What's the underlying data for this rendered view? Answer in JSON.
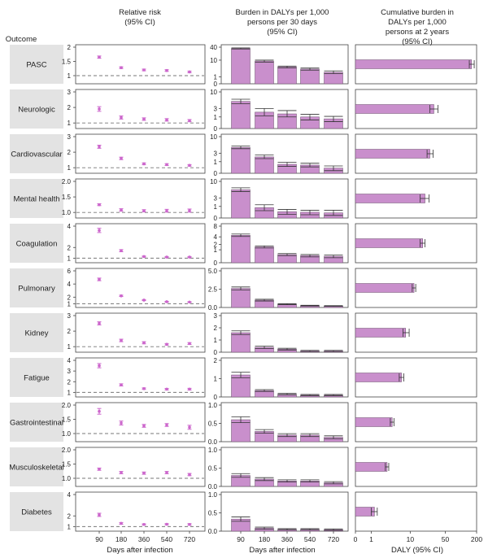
{
  "headers": {
    "outcome": "Outcome",
    "relative_risk": [
      "Relative risk",
      "(95% CI)"
    ],
    "burden": [
      "Burden in DALYs per 1,000",
      "persons per 30 days",
      "(95% CI)"
    ],
    "cumulative": [
      "Cumulative burden in",
      "DALYs per 1,000",
      "persons at 2 years",
      "(95% CI)"
    ]
  },
  "footer": {
    "xlabel_rr": "Days after infection",
    "xlabel_burden": "Days after infection",
    "xlabel_cum": "DALY (95% CI)"
  },
  "colors": {
    "bar": "#c98fcc",
    "bar_edge": "#6a4f6b",
    "point": "#cc66cc",
    "row_label_bg": "#e3e3e3",
    "dashed_line": "#777777"
  },
  "chart_data": {
    "type": "bar",
    "days": [
      "90",
      "180",
      "360",
      "540",
      "720"
    ],
    "cumulative_axis": {
      "scale": "log",
      "lim": [
        0,
        200
      ],
      "tick_values": [
        0,
        1,
        10,
        50,
        200
      ],
      "tick_labels": [
        "0",
        "1",
        "10",
        "50",
        "200"
      ]
    },
    "outcomes": [
      {
        "name": "PASC",
        "rr": {
          "ylim": [
            0.8,
            2.0
          ],
          "ticks": [
            "1",
            "1.5",
            "2"
          ],
          "tick_values": [
            1,
            1.5,
            2
          ],
          "values": [
            1.65,
            1.28,
            1.2,
            1.18,
            1.13
          ],
          "lo": [
            1.61,
            1.25,
            1.17,
            1.15,
            1.1
          ],
          "hi": [
            1.69,
            1.31,
            1.23,
            1.21,
            1.16
          ]
        },
        "burden": {
          "scale": "log",
          "ylim": [
            0,
            40
          ],
          "ticks": [
            "0",
            "1",
            "10",
            "40"
          ],
          "tick_values": [
            0,
            1,
            10,
            40
          ],
          "values": [
            35,
            9,
            4.5,
            3.5,
            2.2
          ],
          "lo": [
            33,
            8,
            4,
            3,
            1.8
          ],
          "hi": [
            37,
            10,
            5,
            4,
            2.7
          ]
        },
        "cumulative": {
          "value": 160,
          "lo": 145,
          "hi": 180
        }
      },
      {
        "name": "Neurologic",
        "rr": {
          "ylim": [
            0.8,
            3.0
          ],
          "ticks": [
            "1",
            "2",
            "3"
          ],
          "tick_values": [
            1,
            2,
            3
          ],
          "values": [
            1.9,
            1.35,
            1.25,
            1.2,
            1.15
          ],
          "lo": [
            1.75,
            1.25,
            1.17,
            1.12,
            1.08
          ],
          "hi": [
            2.05,
            1.45,
            1.33,
            1.28,
            1.22
          ]
        },
        "burden": {
          "scale": "sqrt",
          "ylim": [
            0,
            10
          ],
          "ticks": [
            "0",
            "1",
            "3",
            "10"
          ],
          "tick_values": [
            0,
            1,
            3,
            10
          ],
          "values": [
            5.5,
            2.0,
            1.6,
            1.0,
            0.7
          ],
          "lo": [
            4.6,
            1.2,
            1.0,
            0.55,
            0.35
          ],
          "hi": [
            6.4,
            3.0,
            2.4,
            1.5,
            1.1
          ]
        },
        "cumulative": {
          "value": 30,
          "lo": 25,
          "hi": 36
        }
      },
      {
        "name": "Cardiovascular",
        "rr": {
          "ylim": [
            0.8,
            3.0
          ],
          "ticks": [
            "1",
            "2",
            "3"
          ],
          "tick_values": [
            1,
            2,
            3
          ],
          "values": [
            2.35,
            1.6,
            1.25,
            1.2,
            1.15
          ],
          "lo": [
            2.25,
            1.52,
            1.19,
            1.14,
            1.1
          ],
          "hi": [
            2.45,
            1.68,
            1.31,
            1.26,
            1.2
          ]
        },
        "burden": {
          "scale": "sqrt",
          "ylim": [
            0,
            10
          ],
          "ticks": [
            "0",
            "1",
            "3",
            "10"
          ],
          "tick_values": [
            0,
            1,
            3,
            10
          ],
          "values": [
            5.0,
            2.0,
            0.6,
            0.5,
            0.2
          ],
          "lo": [
            4.5,
            1.6,
            0.35,
            0.3,
            0.05
          ],
          "hi": [
            5.5,
            2.5,
            0.9,
            0.75,
            0.4
          ]
        },
        "cumulative": {
          "value": 25,
          "lo": 22,
          "hi": 29
        }
      },
      {
        "name": "Mental health",
        "rr": {
          "ylim": [
            0.9,
            2.0
          ],
          "ticks": [
            "1.0",
            "1.5",
            "2.0"
          ],
          "tick_values": [
            1,
            1.5,
            2
          ],
          "values": [
            1.25,
            1.08,
            1.05,
            1.05,
            1.06
          ],
          "lo": [
            1.22,
            1.04,
            1.02,
            1.01,
            1.01
          ],
          "hi": [
            1.28,
            1.12,
            1.09,
            1.1,
            1.11
          ]
        },
        "burden": {
          "scale": "sqrt",
          "ylim": [
            0,
            10
          ],
          "ticks": [
            "0",
            "1",
            "3",
            "10"
          ],
          "tick_values": [
            0,
            1,
            3,
            10
          ],
          "values": [
            6.0,
            0.8,
            0.3,
            0.25,
            0.2
          ],
          "lo": [
            5.2,
            0.4,
            0.1,
            0.08,
            0.05
          ],
          "hi": [
            6.8,
            1.3,
            0.55,
            0.45,
            0.45
          ]
        },
        "cumulative": {
          "value": 20,
          "lo": 16,
          "hi": 24
        }
      },
      {
        "name": "Coagulation",
        "rr": {
          "ylim": [
            0.8,
            4.0
          ],
          "ticks": [
            "1",
            "2",
            "4"
          ],
          "tick_values": [
            1,
            2,
            4
          ],
          "values": [
            3.6,
            1.7,
            1.15,
            1.1,
            1.1
          ],
          "lo": [
            3.4,
            1.6,
            1.1,
            1.05,
            1.05
          ],
          "hi": [
            3.8,
            1.8,
            1.2,
            1.15,
            1.15
          ]
        },
        "burden": {
          "scale": "sqrt",
          "ylim": [
            0,
            8
          ],
          "ticks": [
            "0",
            "1",
            "2",
            "4",
            "8"
          ],
          "tick_values": [
            0,
            1,
            2,
            4,
            8
          ],
          "values": [
            4.5,
            1.5,
            0.4,
            0.3,
            0.25
          ],
          "lo": [
            4.1,
            1.3,
            0.3,
            0.2,
            0.15
          ],
          "hi": [
            4.9,
            1.7,
            0.5,
            0.4,
            0.35
          ]
        },
        "cumulative": {
          "value": 18,
          "lo": 16,
          "hi": 20
        }
      },
      {
        "name": "Pulmonary",
        "rr": {
          "ylim": [
            0.8,
            6.0
          ],
          "ticks": [
            "1",
            "2",
            "4",
            "6"
          ],
          "tick_values": [
            1,
            2,
            4,
            6
          ],
          "values": [
            4.7,
            2.2,
            1.55,
            1.3,
            1.25
          ],
          "lo": [
            4.5,
            2.1,
            1.48,
            1.24,
            1.2
          ],
          "hi": [
            4.9,
            2.3,
            1.62,
            1.36,
            1.3
          ]
        },
        "burden": {
          "scale": "linear",
          "ylim": [
            0,
            5
          ],
          "ticks": [
            "0.0",
            "2.5",
            "5.0"
          ],
          "tick_values": [
            0,
            2.5,
            5
          ],
          "values": [
            2.6,
            1.0,
            0.45,
            0.25,
            0.2
          ],
          "lo": [
            2.4,
            0.88,
            0.38,
            0.2,
            0.15
          ],
          "hi": [
            2.8,
            1.12,
            0.52,
            0.3,
            0.25
          ]
        },
        "cumulative": {
          "value": 12,
          "lo": 11,
          "hi": 13
        }
      },
      {
        "name": "Kidney",
        "rr": {
          "ylim": [
            0.8,
            3.0
          ],
          "ticks": [
            "1",
            "2",
            "3"
          ],
          "tick_values": [
            1,
            2,
            3
          ],
          "values": [
            2.5,
            1.4,
            1.25,
            1.15,
            1.2
          ],
          "lo": [
            2.4,
            1.32,
            1.18,
            1.1,
            1.14
          ],
          "hi": [
            2.6,
            1.48,
            1.32,
            1.2,
            1.26
          ]
        },
        "burden": {
          "scale": "linear",
          "ylim": [
            0,
            3
          ],
          "ticks": [
            "0",
            "1",
            "2",
            "3"
          ],
          "tick_values": [
            0,
            1,
            2,
            3
          ],
          "values": [
            1.6,
            0.4,
            0.25,
            0.1,
            0.1
          ],
          "lo": [
            1.45,
            0.3,
            0.18,
            0.05,
            0.05
          ],
          "hi": [
            1.75,
            0.5,
            0.32,
            0.15,
            0.15
          ]
        },
        "cumulative": {
          "value": 8,
          "lo": 7,
          "hi": 9.5
        }
      },
      {
        "name": "Fatigue",
        "rr": {
          "ylim": [
            0.8,
            4.0
          ],
          "ticks": [
            "1",
            "2",
            "3",
            "4"
          ],
          "tick_values": [
            1,
            2,
            3,
            4
          ],
          "values": [
            3.5,
            1.7,
            1.35,
            1.3,
            1.3
          ],
          "lo": [
            3.3,
            1.6,
            1.28,
            1.23,
            1.22
          ],
          "hi": [
            3.7,
            1.8,
            1.42,
            1.37,
            1.38
          ]
        },
        "burden": {
          "scale": "linear",
          "ylim": [
            0,
            2
          ],
          "ticks": [
            "0",
            "1",
            "2"
          ],
          "tick_values": [
            0,
            1,
            2
          ],
          "values": [
            1.2,
            0.35,
            0.15,
            0.1,
            0.1
          ],
          "lo": [
            1.05,
            0.3,
            0.12,
            0.07,
            0.07
          ],
          "hi": [
            1.35,
            0.4,
            0.2,
            0.14,
            0.14
          ]
        },
        "cumulative": {
          "value": 6.5,
          "lo": 5.8,
          "hi": 7.3
        }
      },
      {
        "name": "Gastrointestinal",
        "rr": {
          "ylim": [
            0.8,
            2.0
          ],
          "ticks": [
            "1.0",
            "1.5",
            "2.0"
          ],
          "tick_values": [
            1,
            1.5,
            2
          ],
          "values": [
            1.78,
            1.37,
            1.27,
            1.3,
            1.22
          ],
          "lo": [
            1.68,
            1.3,
            1.22,
            1.25,
            1.15
          ],
          "hi": [
            1.88,
            1.44,
            1.32,
            1.35,
            1.29
          ]
        },
        "burden": {
          "scale": "linear",
          "ylim": [
            0,
            1
          ],
          "ticks": [
            "0.0",
            "0.5",
            "1.0"
          ],
          "tick_values": [
            0,
            0.5,
            1
          ],
          "values": [
            0.6,
            0.28,
            0.18,
            0.18,
            0.12
          ],
          "lo": [
            0.52,
            0.23,
            0.14,
            0.14,
            0.08
          ],
          "hi": [
            0.68,
            0.33,
            0.22,
            0.22,
            0.16
          ]
        },
        "cumulative": {
          "value": 4,
          "lo": 3.6,
          "hi": 4.4
        }
      },
      {
        "name": "Musculoskeletal",
        "rr": {
          "ylim": [
            0.8,
            2.0
          ],
          "ticks": [
            "1.0",
            "1.5",
            "2.0"
          ],
          "tick_values": [
            1,
            1.5,
            2
          ],
          "values": [
            1.32,
            1.2,
            1.18,
            1.2,
            1.13
          ],
          "lo": [
            1.28,
            1.16,
            1.14,
            1.16,
            1.09
          ],
          "hi": [
            1.36,
            1.24,
            1.22,
            1.24,
            1.17
          ]
        },
        "burden": {
          "scale": "linear",
          "ylim": [
            0,
            1
          ],
          "ticks": [
            "0.0",
            "0.5",
            "1.0"
          ],
          "tick_values": [
            0,
            0.5,
            1
          ],
          "values": [
            0.3,
            0.2,
            0.15,
            0.15,
            0.1
          ],
          "lo": [
            0.25,
            0.16,
            0.12,
            0.12,
            0.07
          ],
          "hi": [
            0.35,
            0.24,
            0.18,
            0.18,
            0.13
          ]
        },
        "cumulative": {
          "value": 3,
          "lo": 2.7,
          "hi": 3.3
        }
      },
      {
        "name": "Diabetes",
        "rr": {
          "ylim": [
            0.8,
            4.0
          ],
          "ticks": [
            "1",
            "2",
            "4"
          ],
          "tick_values": [
            1,
            2,
            4
          ],
          "values": [
            2.1,
            1.3,
            1.2,
            1.22,
            1.2
          ],
          "lo": [
            1.95,
            1.22,
            1.14,
            1.16,
            1.12
          ],
          "hi": [
            2.25,
            1.38,
            1.26,
            1.28,
            1.28
          ]
        },
        "burden": {
          "scale": "linear",
          "ylim": [
            0,
            1
          ],
          "ticks": [
            "0.0",
            "0.5",
            "1.0"
          ],
          "tick_values": [
            0,
            0.5,
            1
          ],
          "values": [
            0.33,
            0.08,
            0.05,
            0.05,
            0.04
          ],
          "lo": [
            0.27,
            0.05,
            0.03,
            0.03,
            0.02
          ],
          "hi": [
            0.39,
            0.11,
            0.07,
            0.07,
            0.06
          ]
        },
        "cumulative": {
          "value": 1.3,
          "lo": 1.0,
          "hi": 1.6
        }
      }
    ]
  }
}
